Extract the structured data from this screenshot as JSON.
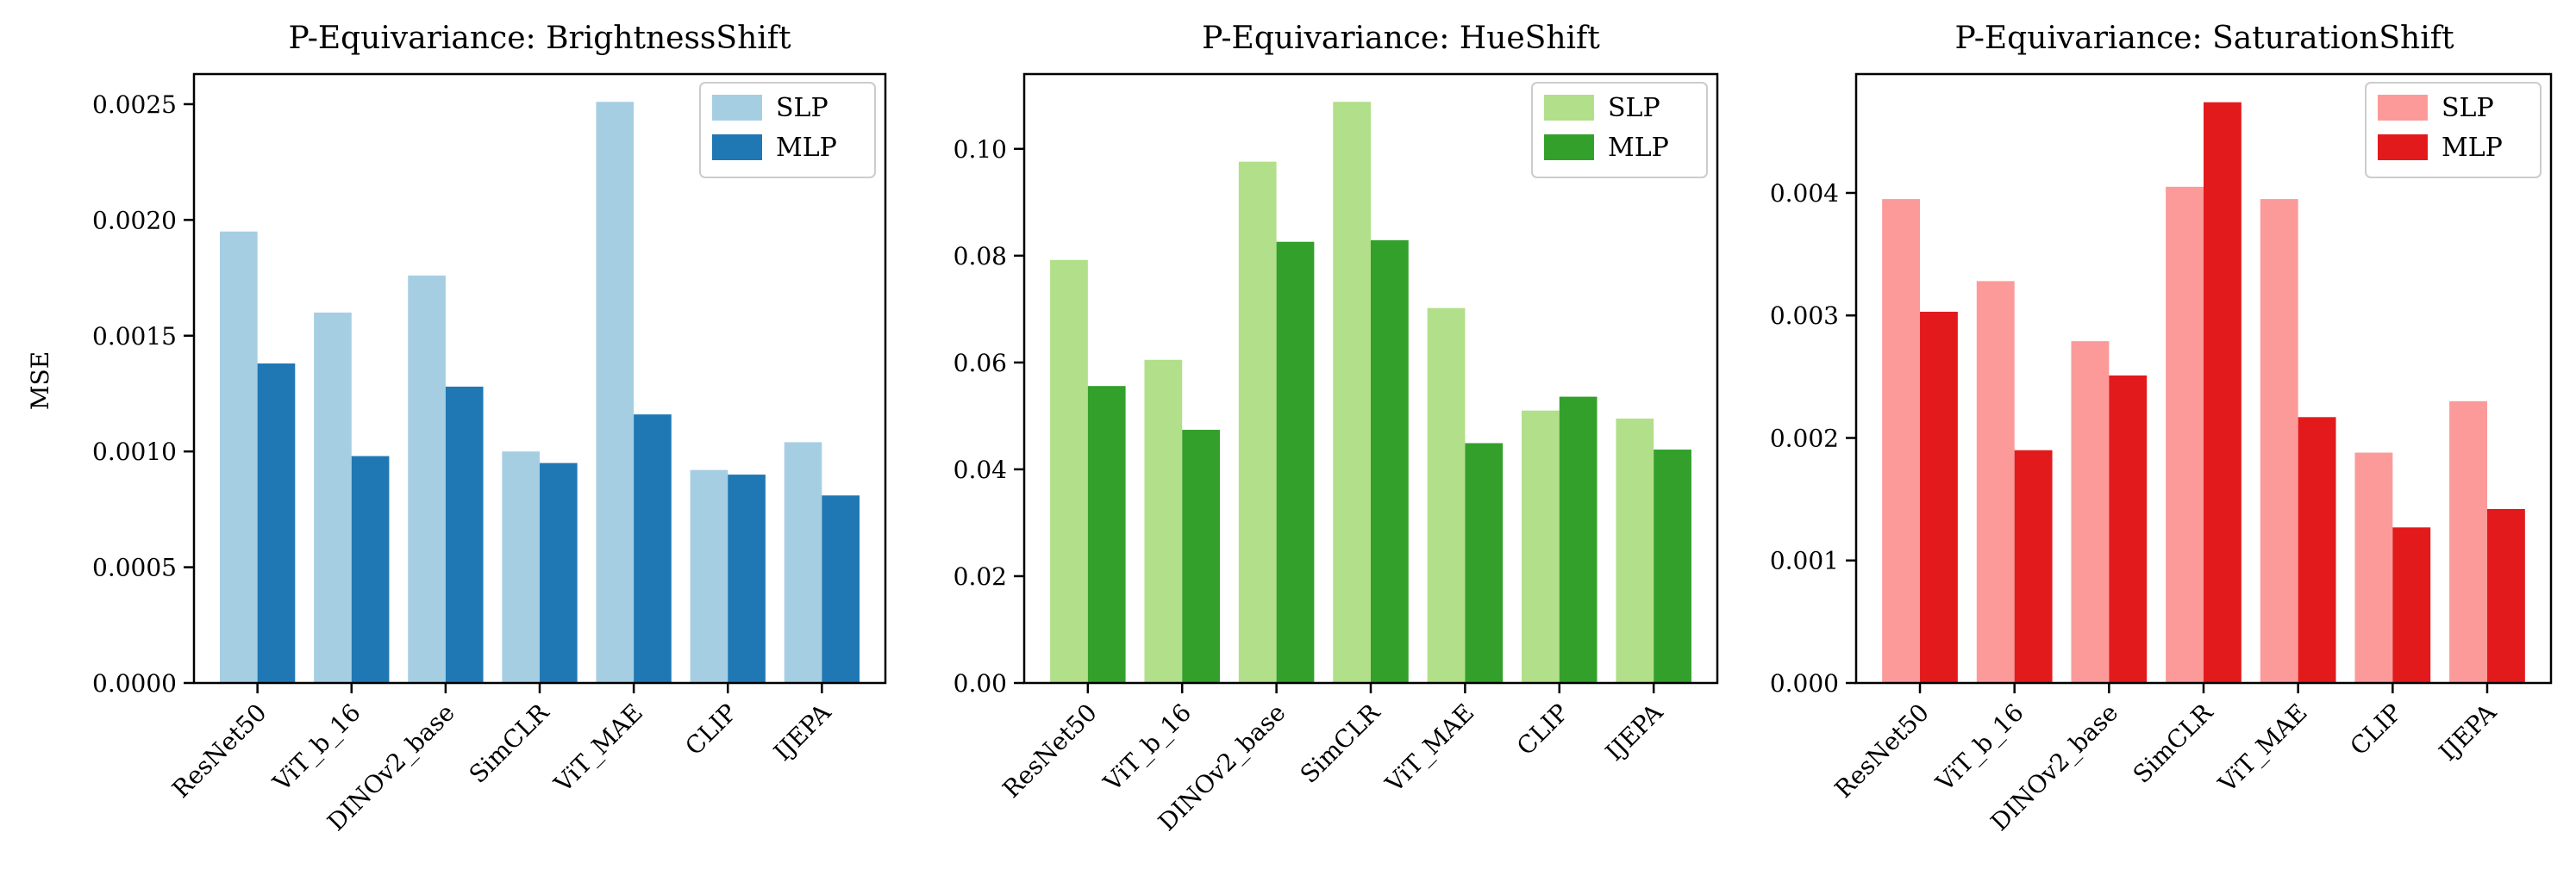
{
  "chart_data": [
    {
      "type": "bar",
      "title": "P-Equivariance: BrightnessShift",
      "ylabel": "MSE",
      "categories": [
        "ResNet50",
        "ViT_b_16",
        "DINOv2_base",
        "SimCLR",
        "ViT_MAE",
        "CLIP",
        "IJEPA"
      ],
      "series": [
        {
          "name": "SLP",
          "color": "#a6cee3",
          "values": [
            0.00195,
            0.0016,
            0.00176,
            0.001,
            0.00251,
            0.00092,
            0.00104
          ]
        },
        {
          "name": "MLP",
          "color": "#1f78b4",
          "values": [
            0.00138,
            0.00098,
            0.00128,
            0.00095,
            0.00116,
            0.0009,
            0.00081
          ]
        }
      ],
      "ylim": [
        0,
        0.00263
      ],
      "yticks": [
        0,
        0.0005,
        0.001,
        0.0015,
        0.002,
        0.0025
      ],
      "ytick_labels": [
        "0.0000",
        "0.0005",
        "0.0010",
        "0.0015",
        "0.0020",
        "0.0025"
      ],
      "legend": "top-right",
      "grid": false
    },
    {
      "type": "bar",
      "title": "P-Equivariance: HueShift",
      "ylabel": "",
      "categories": [
        "ResNet50",
        "ViT_b_16",
        "DINOv2_base",
        "SimCLR",
        "ViT_MAE",
        "CLIP",
        "IJEPA"
      ],
      "series": [
        {
          "name": "SLP",
          "color": "#b2df8a",
          "values": [
            0.0792,
            0.0605,
            0.0976,
            0.1088,
            0.0702,
            0.051,
            0.0495
          ]
        },
        {
          "name": "MLP",
          "color": "#33a02c",
          "values": [
            0.0556,
            0.0474,
            0.0826,
            0.0829,
            0.0449,
            0.0536,
            0.0437
          ]
        }
      ],
      "ylim": [
        0,
        0.114
      ],
      "yticks": [
        0,
        0.02,
        0.04,
        0.06,
        0.08,
        0.1
      ],
      "ytick_labels": [
        "0.00",
        "0.02",
        "0.04",
        "0.06",
        "0.08",
        "0.10"
      ],
      "legend": "top-right",
      "grid": false
    },
    {
      "type": "bar",
      "title": "P-Equivariance: SaturationShift",
      "ylabel": "",
      "categories": [
        "ResNet50",
        "ViT_b_16",
        "DINOv2_base",
        "SimCLR",
        "ViT_MAE",
        "CLIP",
        "IJEPA"
      ],
      "series": [
        {
          "name": "SLP",
          "color": "#fb9a99",
          "values": [
            0.00395,
            0.00328,
            0.00279,
            0.00405,
            0.00395,
            0.00188,
            0.0023
          ]
        },
        {
          "name": "MLP",
          "color": "#e31a1c",
          "values": [
            0.00303,
            0.0019,
            0.00251,
            0.00474,
            0.00217,
            0.00127,
            0.00142
          ]
        }
      ],
      "ylim": [
        0,
        0.00497
      ],
      "yticks": [
        0,
        0.001,
        0.002,
        0.003,
        0.004
      ],
      "ytick_labels": [
        "0.000",
        "0.001",
        "0.002",
        "0.003",
        "0.004"
      ],
      "legend": "top-right",
      "grid": false
    }
  ]
}
